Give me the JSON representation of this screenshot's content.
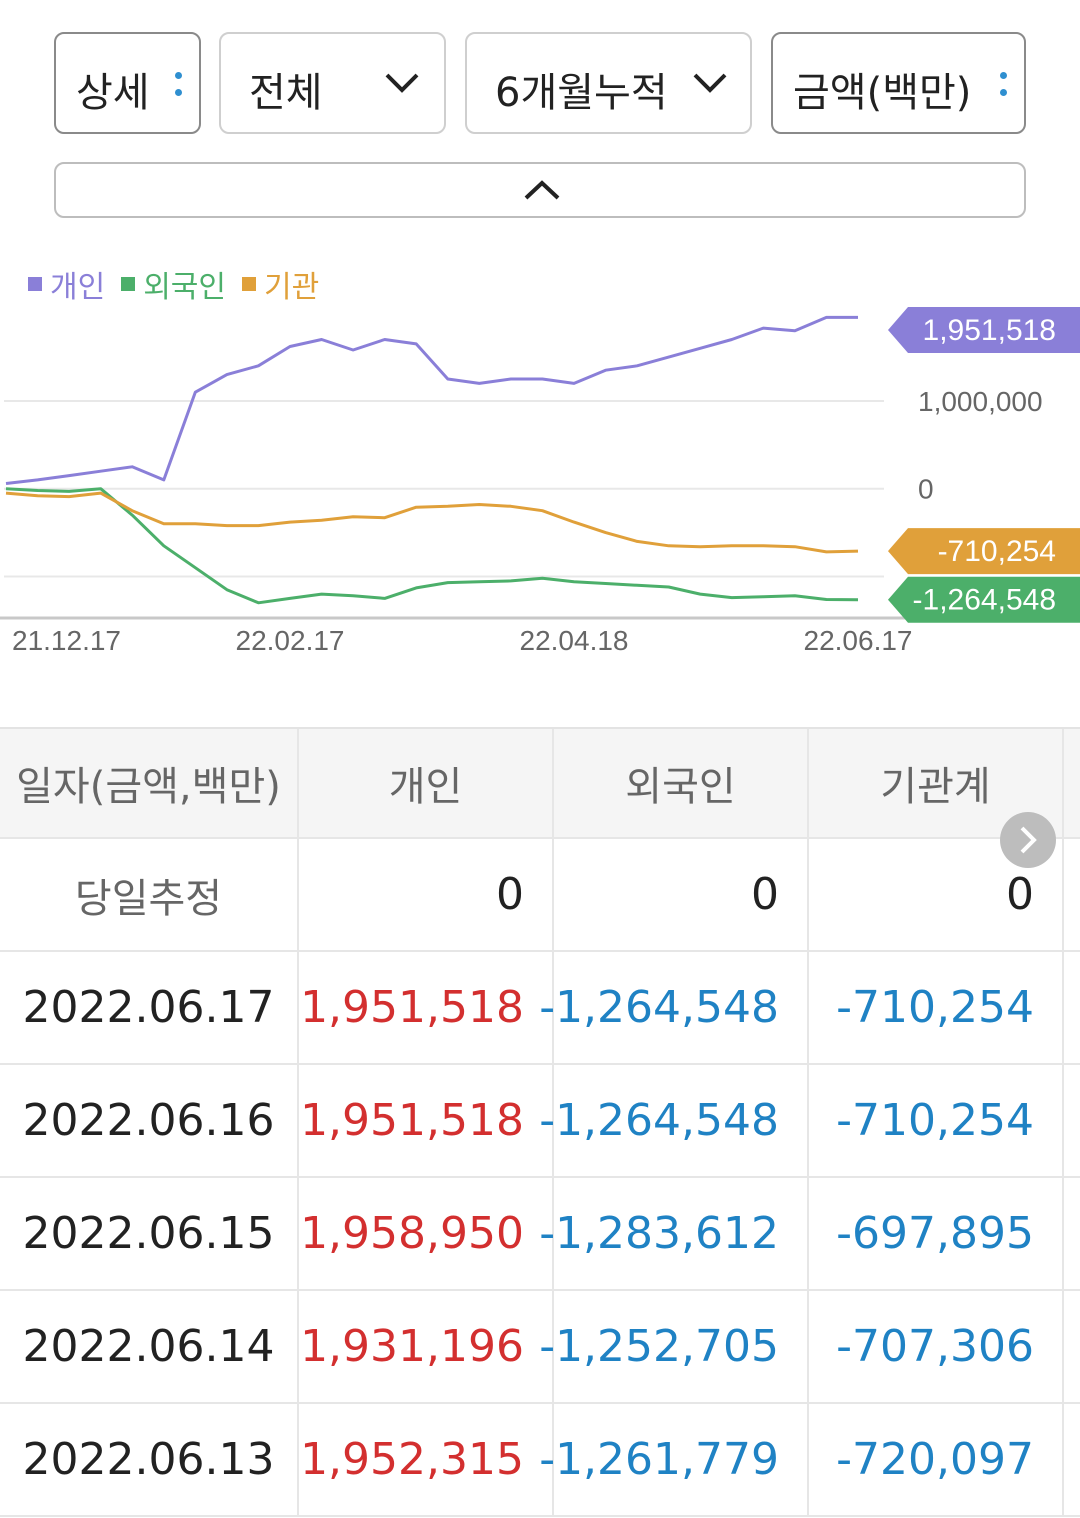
{
  "filters": {
    "detail": "상세",
    "scope": "전체",
    "period": "6개월누적",
    "unit": "금액(백만)"
  },
  "legend": [
    {
      "label": "개인",
      "color": "#8a7fd8"
    },
    {
      "label": "외국인",
      "color": "#4caf6a"
    },
    {
      "label": "기관",
      "color": "#e0a03a"
    }
  ],
  "chart_data": {
    "type": "line",
    "x": [
      "21.12.17",
      "21.12.22",
      "21.12.27",
      "22.01.03",
      "22.01.10",
      "22.01.17",
      "22.01.24",
      "22.02.03",
      "22.02.10",
      "22.02.17",
      "22.02.24",
      "22.03.03",
      "22.03.10",
      "22.03.17",
      "22.03.24",
      "22.03.31",
      "22.04.07",
      "22.04.14",
      "22.04.18",
      "22.04.25",
      "22.05.02",
      "22.05.09",
      "22.05.16",
      "22.05.23",
      "22.05.30",
      "22.06.07",
      "22.06.13",
      "22.06.17"
    ],
    "x_tick_labels": [
      "21.12.17",
      "22.02.17",
      "22.04.18",
      "22.06.17"
    ],
    "series": [
      {
        "name": "개인",
        "color": "#8a7fd8",
        "values": [
          60000,
          100000,
          150000,
          200000,
          250000,
          100000,
          1100000,
          1300000,
          1400000,
          1620000,
          1700000,
          1580000,
          1700000,
          1650000,
          1250000,
          1200000,
          1250000,
          1250000,
          1200000,
          1350000,
          1400000,
          1500000,
          1600000,
          1700000,
          1830000,
          1800000,
          1952315,
          1951518
        ]
      },
      {
        "name": "외국인",
        "color": "#4caf6a",
        "values": [
          0,
          -20000,
          -30000,
          0,
          -300000,
          -650000,
          -900000,
          -1150000,
          -1300000,
          -1250000,
          -1200000,
          -1220000,
          -1250000,
          -1130000,
          -1070000,
          -1060000,
          -1050000,
          -1020000,
          -1060000,
          -1080000,
          -1100000,
          -1120000,
          -1200000,
          -1240000,
          -1230000,
          -1220000,
          -1261779,
          -1264548
        ]
      },
      {
        "name": "기관",
        "color": "#e0a03a",
        "values": [
          -50000,
          -80000,
          -90000,
          -50000,
          -250000,
          -400000,
          -400000,
          -420000,
          -420000,
          -380000,
          -360000,
          -320000,
          -330000,
          -210000,
          -200000,
          -180000,
          -200000,
          -250000,
          -380000,
          -500000,
          -600000,
          -650000,
          -660000,
          -650000,
          -650000,
          -660000,
          -720097,
          -710254
        ]
      }
    ],
    "y_tick_labels": [
      "1,000,000",
      "0"
    ],
    "ylim": [
      -1450000,
      2150000
    ],
    "end_labels": {
      "개인": "1,951,518",
      "기관": "-710,254",
      "외국인": "-1,264,548"
    }
  },
  "table": {
    "headers": [
      "일자(금액,백만)",
      "개인",
      "외국인",
      "기관계"
    ],
    "estimate": {
      "label": "당일추정",
      "values": [
        "0",
        "0",
        "0"
      ]
    },
    "rows": [
      {
        "date": "2022.06.17",
        "individual": "1,951,518",
        "foreign": "-1,264,548",
        "institution": "-710,254"
      },
      {
        "date": "2022.06.16",
        "individual": "1,951,518",
        "foreign": "-1,264,548",
        "institution": "-710,254"
      },
      {
        "date": "2022.06.15",
        "individual": "1,958,950",
        "foreign": "-1,283,612",
        "institution": "-697,895"
      },
      {
        "date": "2022.06.14",
        "individual": "1,931,196",
        "foreign": "-1,252,705",
        "institution": "-707,306"
      },
      {
        "date": "2022.06.13",
        "individual": "1,952,315",
        "foreign": "-1,261,779",
        "institution": "-720,097"
      }
    ]
  }
}
